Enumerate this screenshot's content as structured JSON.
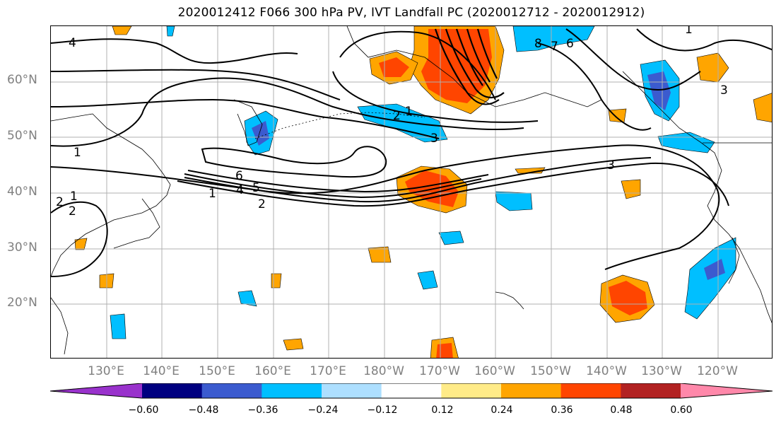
{
  "title": "2020012412 F066 300 hPa PV, IVT Landfall PC (2020012712 - 2020012912)",
  "map": {
    "lat_labels": [
      "60°N",
      "50°N",
      "40°N",
      "30°N",
      "20°N"
    ],
    "lon_labels": [
      "130°E",
      "140°E",
      "150°E",
      "160°E",
      "170°E",
      "180°W",
      "170°W",
      "160°W",
      "150°W",
      "140°W",
      "130°W",
      "120°W"
    ],
    "contour_labels": [
      "4",
      "1",
      "2",
      "1",
      "2",
      "3",
      "6",
      "4",
      "5",
      "1",
      "2",
      "3",
      "8",
      "7",
      "6",
      "1",
      "3",
      "1",
      "2"
    ],
    "gridlines": true
  },
  "colorbar": {
    "ticks": [
      "−0.60",
      "−0.48",
      "−0.36",
      "−0.24",
      "−0.12",
      "0.12",
      "0.24",
      "0.36",
      "0.48",
      "0.60"
    ],
    "colors": [
      "#9932CC",
      "#000080",
      "#3B5BCF",
      "#00BFFF",
      "#ADDFFF",
      "#FFFFFF",
      "#FFEB88",
      "#FFA500",
      "#FF4500",
      "#B22222",
      "#FF88AA"
    ],
    "extend": "both"
  }
}
